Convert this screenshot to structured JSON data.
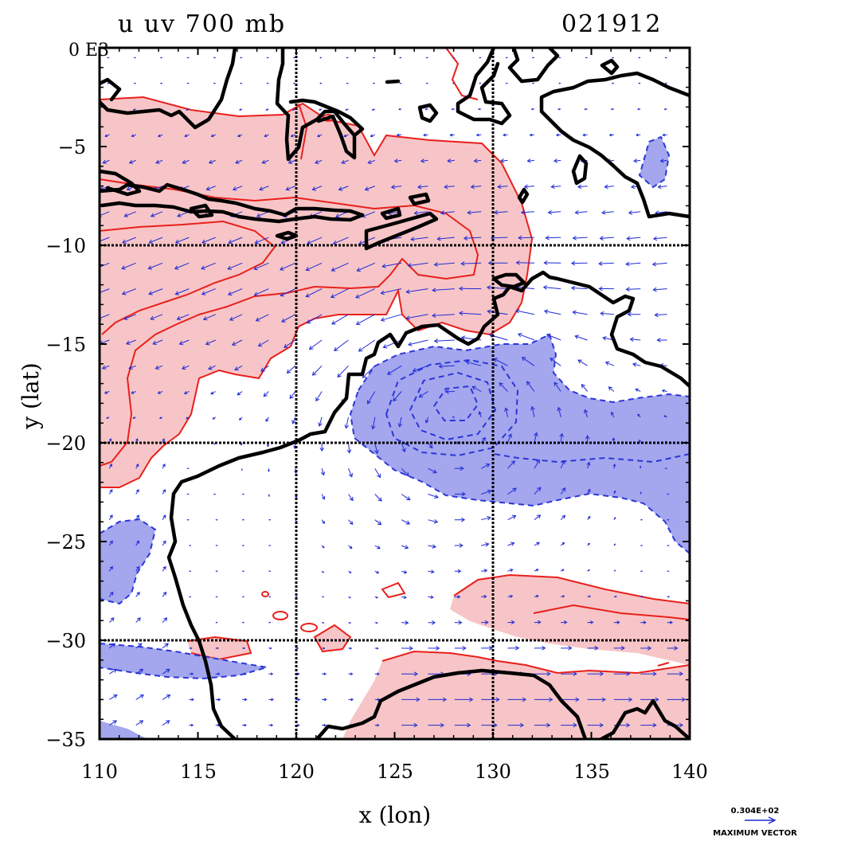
{
  "plot": {
    "title_left": "u uv 700 mb",
    "title_right": "021912",
    "corner_label": "0 E3",
    "xlabel": "x (lon)",
    "ylabel": "y (lat)",
    "vector_key_value": "0.304E+02",
    "vector_key_label": "MAXIMUM VECTOR"
  },
  "map": {
    "lon_range": [
      110,
      140
    ],
    "lat_range": [
      -35,
      0
    ],
    "x_ticks": [
      "110",
      "115",
      "120",
      "125",
      "130",
      "135",
      "140"
    ],
    "y_ticks": [
      "0",
      "−5",
      "−10",
      "−15",
      "−20",
      "−25",
      "−30",
      "−35"
    ],
    "grid_lons": [
      120,
      130
    ],
    "grid_lats": [
      -10,
      -20,
      -30
    ],
    "colors": {
      "positive_fill": "#f7c5c7",
      "positive_contour": "#e8201c",
      "negative_fill": "#a4a6ee",
      "negative_contour": "#2a36d8",
      "coastline": "#000000",
      "wind_vectors": "#1f2bd6"
    }
  }
}
